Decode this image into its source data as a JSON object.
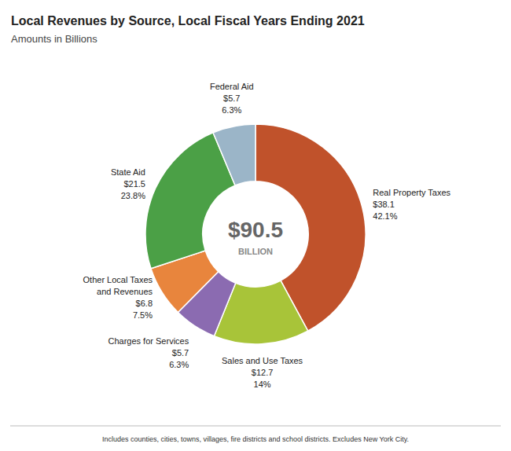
{
  "chart_data": {
    "type": "donut",
    "title": "Local Revenues by Source, Local Fiscal Years Ending 2021",
    "subtitle": "Amounts in Billions",
    "footnote": "Includes counties, cities, towns, villages, fire districts and school districts. Excludes New York City.",
    "categories": [
      "Real Property Taxes",
      "Sales and Use Taxes",
      "Charges for Services",
      "Other Local Taxes\nand Revenues",
      "State Aid",
      "Federal Aid"
    ],
    "values": [
      38.1,
      12.7,
      5.7,
      6.8,
      21.5,
      5.7
    ],
    "value_labels": [
      "$38.1",
      "$12.7",
      "$5.7",
      "$6.8",
      "$21.5",
      "$5.7"
    ],
    "shares": [
      42.1,
      14,
      6.3,
      7.5,
      23.8,
      6.3
    ],
    "share_labels": [
      "42.1%",
      "14%",
      "6.3%",
      "7.5%",
      "23.8%",
      "6.3%"
    ],
    "colors": [
      "#C0522B",
      "#A8C439",
      "#8B6BB1",
      "#E8853D",
      "#4BA046",
      "#9BB5C8"
    ],
    "total": 90.5,
    "total_label": "$90.5",
    "center_note": "BILLION",
    "data_labels": true
  }
}
